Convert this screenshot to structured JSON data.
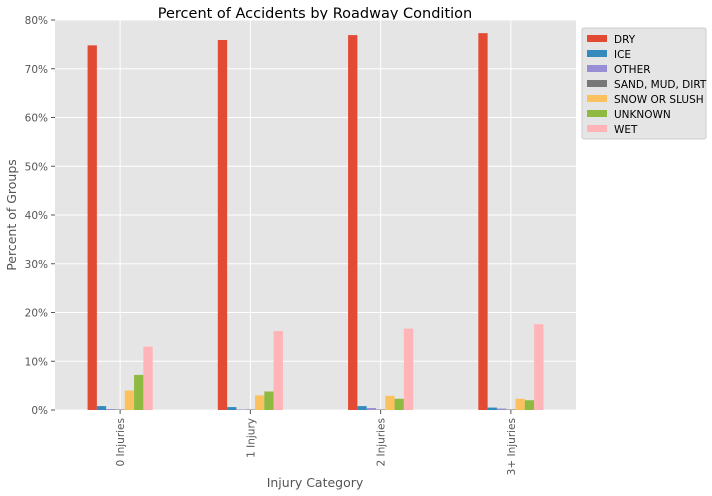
{
  "chart_data": {
    "type": "bar",
    "title": "Percent of Accidents by Roadway Condition",
    "xlabel": "Injury Category",
    "ylabel": "Percent of Groups",
    "ylim": [
      0,
      80
    ],
    "yticks": [
      "0%",
      "10%",
      "20%",
      "30%",
      "40%",
      "50%",
      "60%",
      "70%",
      "80%"
    ],
    "grid": true,
    "legend_position": "outside-top-right",
    "categories": [
      "0 Injuries",
      "1 Injury",
      "2 Injuries",
      "3+ Injuries"
    ],
    "series": [
      {
        "name": "DRY",
        "color": "#e24a33",
        "values": [
          74.8,
          75.9,
          76.9,
          77.3
        ]
      },
      {
        "name": "ICE",
        "color": "#348abd",
        "values": [
          0.8,
          0.6,
          0.8,
          0.5
        ]
      },
      {
        "name": "OTHER",
        "color": "#988ed5",
        "values": [
          0.2,
          0.1,
          0.4,
          0.3
        ]
      },
      {
        "name": "SAND, MUD, DIRT",
        "color": "#777777",
        "values": [
          0.1,
          0.1,
          0.1,
          0.1
        ]
      },
      {
        "name": "SNOW OR SLUSH",
        "color": "#fbc15e",
        "values": [
          4.0,
          3.0,
          2.9,
          2.3
        ]
      },
      {
        "name": "UNKNOWN",
        "color": "#8eba42",
        "values": [
          7.2,
          3.8,
          2.3,
          2.0
        ]
      },
      {
        "name": "WET",
        "color": "#ffb5b8",
        "values": [
          13.0,
          16.2,
          16.7,
          17.6
        ]
      }
    ]
  }
}
